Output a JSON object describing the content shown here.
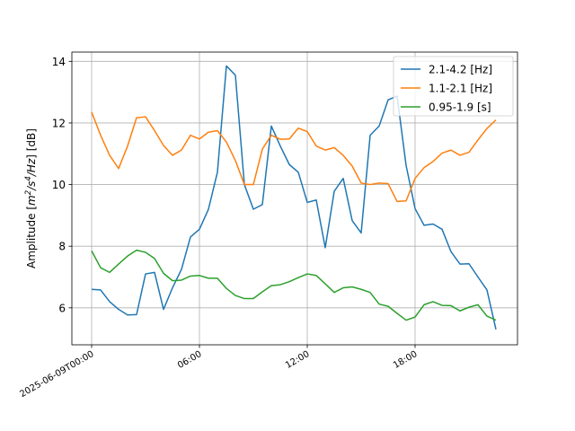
{
  "chart_data": {
    "type": "line",
    "title": "",
    "xlabel": "",
    "ylabel_parts": [
      "Amplitude [",
      "m",
      "2",
      "/",
      "s",
      "4",
      "/",
      "Hz",
      "] [dB]"
    ],
    "x_ticks": [
      {
        "t": 0,
        "label": "2025-06-09T00:00"
      },
      {
        "t": 360,
        "label": "06:00"
      },
      {
        "t": 720,
        "label": "12:00"
      },
      {
        "t": 1080,
        "label": "18:00"
      }
    ],
    "xlim": [
      -66,
      1422
    ],
    "ylim": [
      4.8,
      14.3
    ],
    "y_ticks": [
      6,
      8,
      10,
      12,
      14
    ],
    "grid": true,
    "legend_position": "top-right",
    "series": [
      {
        "name": "2.1-4.2 [Hz]",
        "color": "#1f77b4",
        "points": [
          [
            0,
            6.6
          ],
          [
            30,
            6.58
          ],
          [
            60,
            6.2
          ],
          [
            90,
            5.95
          ],
          [
            120,
            5.77
          ],
          [
            150,
            5.78
          ],
          [
            180,
            7.1
          ],
          [
            210,
            7.15
          ],
          [
            240,
            5.95
          ],
          [
            270,
            6.65
          ],
          [
            300,
            7.25
          ],
          [
            330,
            8.3
          ],
          [
            360,
            8.55
          ],
          [
            390,
            9.2
          ],
          [
            420,
            10.4
          ],
          [
            450,
            13.85
          ],
          [
            480,
            13.55
          ],
          [
            510,
            10.0
          ],
          [
            540,
            9.2
          ],
          [
            570,
            9.35
          ],
          [
            600,
            11.9
          ],
          [
            630,
            11.25
          ],
          [
            660,
            10.65
          ],
          [
            690,
            10.4
          ],
          [
            720,
            9.42
          ],
          [
            750,
            9.5
          ],
          [
            780,
            7.95
          ],
          [
            810,
            9.78
          ],
          [
            840,
            10.2
          ],
          [
            870,
            8.83
          ],
          [
            900,
            8.43
          ],
          [
            930,
            11.6
          ],
          [
            960,
            11.9
          ],
          [
            990,
            12.75
          ],
          [
            1020,
            12.87
          ],
          [
            1050,
            10.62
          ],
          [
            1080,
            9.22
          ],
          [
            1110,
            8.68
          ],
          [
            1140,
            8.72
          ],
          [
            1170,
            8.55
          ],
          [
            1200,
            7.82
          ],
          [
            1230,
            7.42
          ],
          [
            1260,
            7.43
          ],
          [
            1290,
            7.0
          ],
          [
            1320,
            6.58
          ],
          [
            1350,
            5.3
          ]
        ]
      },
      {
        "name": "1.1-2.1 [Hz]",
        "color": "#ff7f0e",
        "points": [
          [
            0,
            12.35
          ],
          [
            30,
            11.6
          ],
          [
            60,
            10.95
          ],
          [
            90,
            10.52
          ],
          [
            120,
            11.25
          ],
          [
            150,
            12.17
          ],
          [
            180,
            12.2
          ],
          [
            210,
            11.75
          ],
          [
            240,
            11.27
          ],
          [
            270,
            10.95
          ],
          [
            300,
            11.12
          ],
          [
            330,
            11.6
          ],
          [
            360,
            11.48
          ],
          [
            390,
            11.7
          ],
          [
            420,
            11.75
          ],
          [
            450,
            11.38
          ],
          [
            480,
            10.78
          ],
          [
            510,
            10.0
          ],
          [
            540,
            10.0
          ],
          [
            570,
            11.15
          ],
          [
            600,
            11.6
          ],
          [
            630,
            11.47
          ],
          [
            660,
            11.48
          ],
          [
            690,
            11.83
          ],
          [
            720,
            11.72
          ],
          [
            750,
            11.25
          ],
          [
            780,
            11.12
          ],
          [
            810,
            11.2
          ],
          [
            840,
            10.95
          ],
          [
            870,
            10.6
          ],
          [
            900,
            10.05
          ],
          [
            930,
            10.0
          ],
          [
            960,
            10.05
          ],
          [
            990,
            10.03
          ],
          [
            1020,
            9.45
          ],
          [
            1050,
            9.47
          ],
          [
            1080,
            10.2
          ],
          [
            1110,
            10.55
          ],
          [
            1140,
            10.75
          ],
          [
            1170,
            11.02
          ],
          [
            1200,
            11.12
          ],
          [
            1230,
            10.95
          ],
          [
            1260,
            11.05
          ],
          [
            1290,
            11.45
          ],
          [
            1320,
            11.82
          ],
          [
            1350,
            12.1
          ]
        ]
      },
      {
        "name": "0.95-1.9 [s]",
        "color": "#2ca02c",
        "points": [
          [
            0,
            7.85
          ],
          [
            30,
            7.3
          ],
          [
            60,
            7.15
          ],
          [
            90,
            7.42
          ],
          [
            120,
            7.68
          ],
          [
            150,
            7.87
          ],
          [
            180,
            7.8
          ],
          [
            210,
            7.6
          ],
          [
            240,
            7.12
          ],
          [
            270,
            6.88
          ],
          [
            300,
            6.9
          ],
          [
            330,
            7.03
          ],
          [
            360,
            7.05
          ],
          [
            390,
            6.96
          ],
          [
            420,
            6.96
          ],
          [
            450,
            6.63
          ],
          [
            480,
            6.4
          ],
          [
            510,
            6.3
          ],
          [
            540,
            6.3
          ],
          [
            570,
            6.52
          ],
          [
            600,
            6.72
          ],
          [
            630,
            6.75
          ],
          [
            660,
            6.85
          ],
          [
            690,
            6.98
          ],
          [
            720,
            7.1
          ],
          [
            750,
            7.05
          ],
          [
            780,
            6.78
          ],
          [
            810,
            6.5
          ],
          [
            840,
            6.65
          ],
          [
            870,
            6.68
          ],
          [
            900,
            6.6
          ],
          [
            930,
            6.5
          ],
          [
            960,
            6.12
          ],
          [
            990,
            6.05
          ],
          [
            1020,
            5.82
          ],
          [
            1050,
            5.6
          ],
          [
            1080,
            5.7
          ],
          [
            1110,
            6.1
          ],
          [
            1140,
            6.2
          ],
          [
            1170,
            6.08
          ],
          [
            1200,
            6.07
          ],
          [
            1230,
            5.9
          ],
          [
            1260,
            6.02
          ],
          [
            1290,
            6.1
          ],
          [
            1320,
            5.73
          ],
          [
            1350,
            5.6
          ]
        ]
      }
    ]
  }
}
